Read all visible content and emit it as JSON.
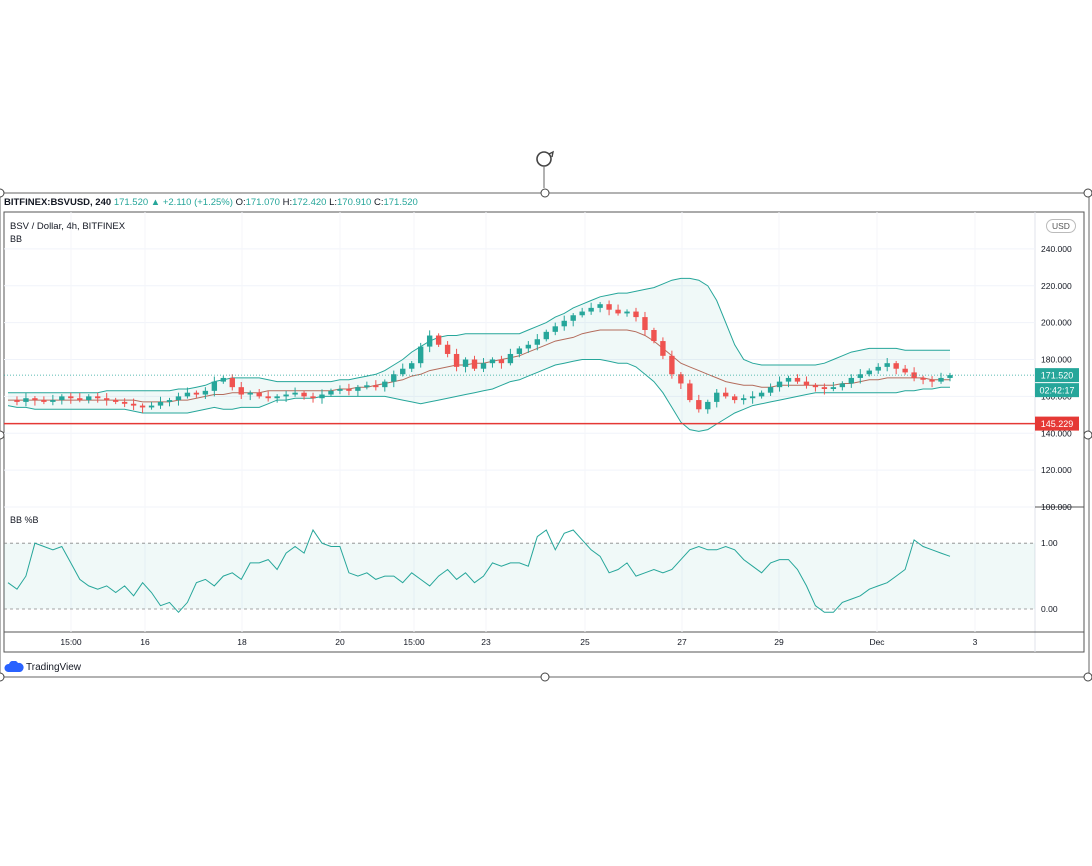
{
  "header": {
    "symbol": "BITFINEX:BSVUSD, 240",
    "last": "171.520",
    "change": "+2.110 (+1.25%)",
    "open_label": "O:",
    "open": "171.070",
    "high_label": "H:",
    "high": "172.420",
    "low_label": "L:",
    "low": "170.910",
    "close_label": "C:",
    "close": "171.520"
  },
  "chart_title": "BSV / Dollar, 4h, BITFINEX",
  "indicator": "BB",
  "pane2_title": "BB %B",
  "currency": "USD",
  "brand": "TradingView",
  "price_tag": "171.520",
  "countdown_tag": "02:42:17",
  "line_tag": "145.229",
  "colors": {
    "up": "#26a69a",
    "down": "#ef5350",
    "band": "#26a69a",
    "basis": "#b46d5d",
    "hline": "#e53935"
  },
  "chart_data": [
    {
      "type": "candlestick",
      "title": "BSV / Dollar, 4h, BITFINEX",
      "ylim": [
        100,
        260
      ],
      "y_ticks": [
        "100.000",
        "120.000",
        "140.000",
        "160.000",
        "180.000",
        "200.000",
        "220.000",
        "240.000"
      ],
      "x_ticks": [
        "15:00",
        "16",
        "18",
        "20",
        "15:00",
        "23",
        "25",
        "27",
        "29",
        "Dec",
        "3"
      ],
      "grid": true,
      "horizontal_line": 145.229,
      "last_price": 171.52,
      "ohlc_path": [
        158,
        157,
        159,
        158,
        157,
        158,
        160,
        159,
        158,
        160,
        159,
        158,
        157,
        156,
        155,
        154,
        155,
        157,
        158,
        160,
        162,
        161,
        163,
        168,
        170,
        165,
        161,
        162,
        160,
        159,
        160,
        161,
        162,
        160,
        159,
        161,
        163,
        164,
        163,
        165,
        166,
        165,
        168,
        172,
        175,
        178,
        187,
        193,
        188,
        183,
        176,
        180,
        175,
        178,
        180,
        178,
        183,
        186,
        188,
        191,
        195,
        198,
        201,
        204,
        206,
        208,
        210,
        207,
        205,
        206,
        203,
        196,
        190,
        182,
        172,
        167,
        158,
        153,
        157,
        162,
        160,
        158,
        159,
        160,
        162,
        165,
        168,
        170,
        168,
        166,
        165,
        164,
        165,
        167,
        170,
        172,
        174,
        176,
        178,
        175,
        173,
        170,
        169,
        168,
        170,
        171.52
      ],
      "bb_upper": [
        162,
        162,
        162,
        162,
        162,
        162,
        162,
        162,
        162,
        162,
        162,
        163,
        163,
        163,
        163,
        163,
        163,
        163,
        163,
        164,
        164,
        165,
        166,
        168,
        169,
        170,
        170,
        170,
        170,
        169,
        168,
        168,
        168,
        168,
        168,
        168,
        168,
        169,
        169,
        170,
        171,
        172,
        174,
        177,
        180,
        184,
        187,
        190,
        192,
        193,
        193,
        194,
        194,
        194,
        194,
        194,
        194,
        194,
        196,
        198,
        200,
        203,
        205,
        208,
        210,
        212,
        214,
        215,
        216,
        216,
        217,
        218,
        219,
        221,
        223,
        224,
        224,
        223,
        220,
        212,
        200,
        188,
        180,
        178,
        177,
        177,
        177,
        177,
        177,
        177,
        177,
        178,
        180,
        182,
        184,
        185,
        186,
        186,
        186,
        186,
        185,
        185,
        185,
        185,
        185,
        185
      ],
      "bb_basis": [
        158,
        158,
        158,
        158,
        158,
        158,
        158,
        158,
        158,
        158,
        158,
        158,
        158,
        158,
        158,
        157,
        157,
        157,
        157,
        158,
        158,
        159,
        160,
        161,
        161,
        162,
        162,
        162,
        162,
        163,
        163,
        163,
        163,
        163,
        163,
        163,
        163,
        164,
        164,
        165,
        165,
        166,
        167,
        168,
        169,
        171,
        172,
        174,
        175,
        176,
        177,
        177,
        178,
        178,
        179,
        180,
        181,
        182,
        184,
        186,
        188,
        190,
        191,
        192,
        194,
        195,
        196,
        196,
        196,
        196,
        195,
        193,
        190,
        186,
        182,
        178,
        176,
        174,
        172,
        170,
        168,
        167,
        166,
        166,
        165,
        165,
        166,
        166,
        166,
        166,
        166,
        166,
        166,
        167,
        167,
        168,
        169,
        169,
        170,
        170,
        170,
        170,
        170,
        169,
        169,
        169
      ],
      "bb_lower": [
        155,
        154,
        154,
        153,
        153,
        153,
        153,
        153,
        153,
        153,
        153,
        153,
        153,
        153,
        152,
        151,
        151,
        151,
        151,
        151,
        151,
        152,
        153,
        154,
        153,
        153,
        154,
        154,
        154,
        156,
        158,
        158,
        159,
        159,
        159,
        160,
        160,
        160,
        160,
        160,
        160,
        160,
        160,
        159,
        158,
        157,
        156,
        157,
        158,
        159,
        160,
        161,
        162,
        163,
        164,
        166,
        168,
        169,
        171,
        173,
        175,
        177,
        178,
        179,
        180,
        180,
        180,
        179,
        178,
        178,
        176,
        172,
        168,
        162,
        154,
        146,
        142,
        141,
        142,
        145,
        148,
        151,
        153,
        155,
        156,
        157,
        158,
        159,
        160,
        161,
        162,
        162,
        162,
        162,
        162,
        162,
        162,
        162,
        162,
        162,
        163,
        163,
        164,
        164,
        165,
        165
      ]
    },
    {
      "type": "line",
      "title": "BB %B",
      "ylim": [
        -0.35,
        1.55
      ],
      "y_ticks": [
        "0.00",
        "1.00"
      ],
      "reference_lines": [
        0,
        1
      ],
      "values": [
        0.4,
        0.3,
        0.5,
        1.0,
        0.95,
        0.9,
        0.95,
        0.7,
        0.45,
        0.35,
        0.3,
        0.35,
        0.25,
        0.35,
        0.2,
        0.4,
        0.25,
        0.05,
        0.1,
        -0.05,
        0.1,
        0.4,
        0.45,
        0.35,
        0.5,
        0.55,
        0.45,
        0.7,
        0.7,
        0.75,
        0.6,
        0.85,
        0.95,
        0.85,
        1.2,
        1.0,
        0.95,
        0.95,
        0.55,
        0.5,
        0.55,
        0.45,
        0.5,
        0.5,
        0.4,
        0.55,
        0.45,
        0.35,
        0.5,
        0.6,
        0.45,
        0.55,
        0.4,
        0.5,
        0.7,
        0.65,
        0.7,
        0.7,
        0.65,
        1.1,
        1.2,
        0.9,
        1.15,
        1.2,
        1.05,
        0.9,
        0.8,
        0.55,
        0.6,
        0.7,
        0.5,
        0.55,
        0.6,
        0.55,
        0.6,
        0.75,
        0.9,
        0.95,
        0.9,
        0.9,
        0.95,
        0.9,
        0.75,
        0.65,
        0.55,
        0.7,
        0.75,
        0.75,
        0.6,
        0.35,
        0.05,
        -0.05,
        -0.05,
        0.1,
        0.15,
        0.2,
        0.3,
        0.35,
        0.4,
        0.5,
        0.6,
        1.05,
        0.95,
        0.9,
        0.85,
        0.8
      ]
    }
  ]
}
